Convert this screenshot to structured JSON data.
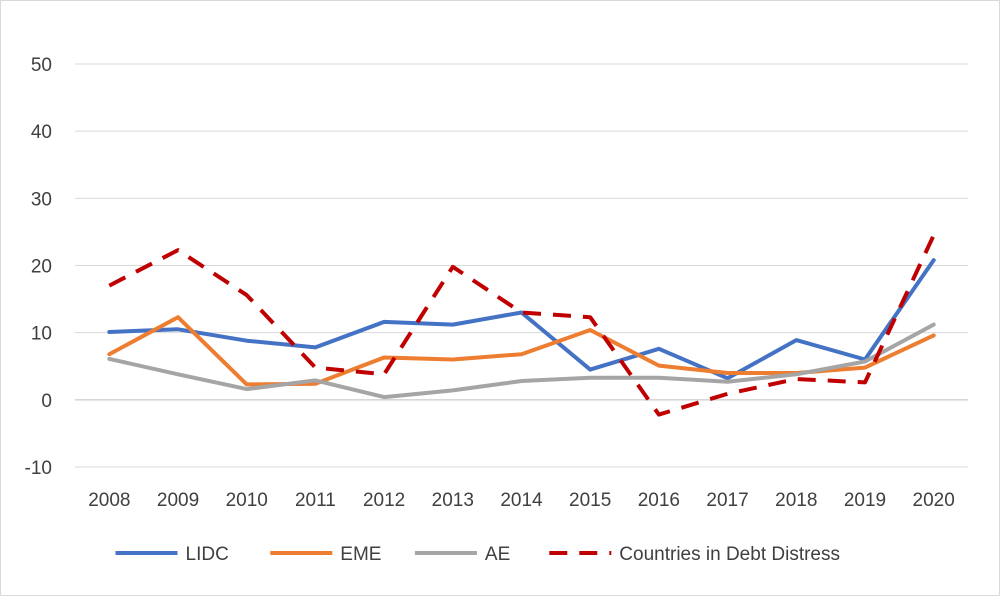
{
  "chart_data": {
    "type": "line",
    "categories": [
      "2008",
      "2009",
      "2010",
      "2011",
      "2012",
      "2013",
      "2014",
      "2015",
      "2016",
      "2017",
      "2018",
      "2019",
      "2020"
    ],
    "ylim": [
      -10,
      50
    ],
    "yticks": [
      -10,
      0,
      10,
      20,
      30,
      40,
      50
    ],
    "grid": true,
    "legend_position": "bottom",
    "series": [
      {
        "name": "LIDC",
        "color": "#4472C4",
        "dash": "solid",
        "values": [
          10.1,
          10.5,
          8.8,
          7.8,
          11.6,
          11.2,
          13.0,
          4.5,
          7.6,
          3.2,
          8.9,
          6.0,
          20.8
        ]
      },
      {
        "name": "EME",
        "color": "#ED7D31",
        "dash": "solid",
        "values": [
          6.8,
          12.3,
          2.3,
          2.4,
          6.3,
          6.0,
          6.8,
          10.4,
          5.1,
          4.0,
          4.0,
          4.8,
          9.6
        ]
      },
      {
        "name": "AE",
        "color": "#A5A5A5",
        "dash": "solid",
        "values": [
          6.1,
          3.8,
          1.6,
          2.9,
          0.4,
          1.4,
          2.8,
          3.3,
          3.3,
          2.7,
          3.8,
          5.7,
          11.2
        ]
      },
      {
        "name": "Countries in Debt Distress",
        "color": "#C00000",
        "dash": "dashed",
        "values": [
          17.0,
          22.3,
          15.6,
          4.8,
          3.8,
          19.8,
          13.0,
          12.3,
          -2.2,
          0.9,
          3.1,
          2.6,
          24.5
        ]
      }
    ]
  }
}
